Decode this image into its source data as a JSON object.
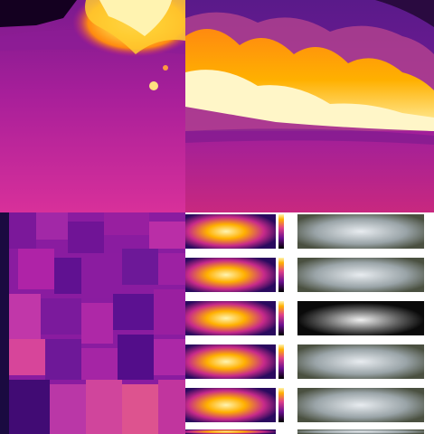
{
  "image": {
    "panels": [
      {
        "id": "thermal-fire-closeup",
        "kind": "thermal image"
      },
      {
        "id": "thermal-fire-front",
        "kind": "thermal image"
      },
      {
        "id": "thermal-pixel-zoom",
        "kind": "thermal image"
      },
      {
        "id": "thermal-visible-pairs",
        "kind": "comparison grid"
      }
    ],
    "palette": {
      "cold": "#2a0a5e",
      "cool": "#6a0f8e",
      "mid": "#b0209a",
      "warm": "#e0408a",
      "hot": "#ff7a1a",
      "hotter": "#ffb000",
      "hottest": "#fff4b0"
    },
    "rows": 6
  }
}
